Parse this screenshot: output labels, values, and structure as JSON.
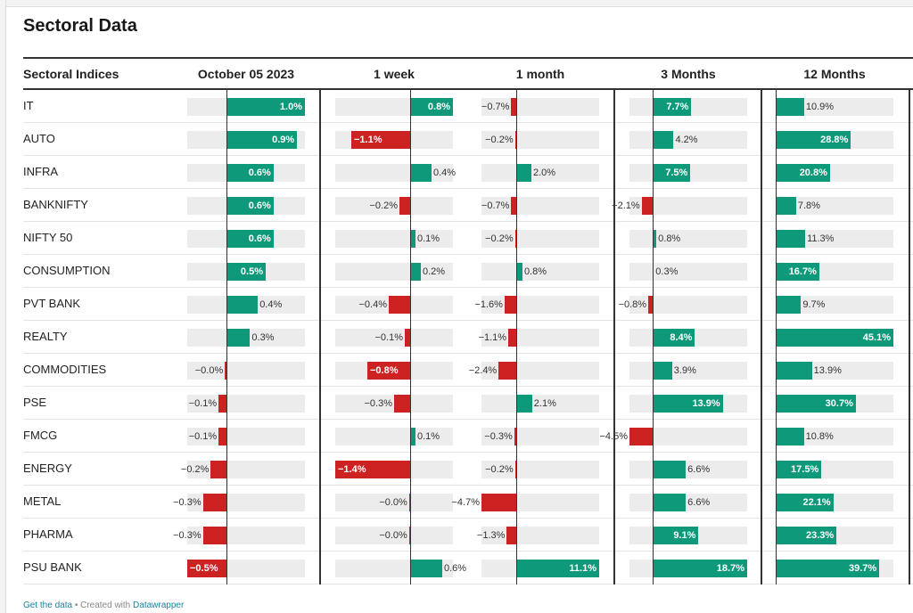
{
  "title": "Sectoral Data",
  "chart_data": {
    "type": "table",
    "row_header": "Sectoral Indices",
    "columns": [
      "October 05 2023",
      "1 week",
      "1 month",
      "3 Months",
      "12 Months"
    ],
    "rows": [
      {
        "name": "IT",
        "values": [
          1.0,
          0.8,
          -0.7,
          7.7,
          10.9
        ],
        "labels": [
          "1.0%",
          "0.8%",
          "−0.7%",
          "7.7%",
          "10.9%"
        ]
      },
      {
        "name": "AUTO",
        "values": [
          0.9,
          -1.1,
          -0.2,
          4.2,
          28.8
        ],
        "labels": [
          "0.9%",
          "−1.1%",
          "−0.2%",
          "4.2%",
          "28.8%"
        ]
      },
      {
        "name": "INFRA",
        "values": [
          0.6,
          0.4,
          2.0,
          7.5,
          20.8
        ],
        "labels": [
          "0.6%",
          "0.4%",
          "2.0%",
          "7.5%",
          "20.8%"
        ]
      },
      {
        "name": "BANKNIFTY",
        "values": [
          0.6,
          -0.2,
          -0.7,
          -2.1,
          7.8
        ],
        "labels": [
          "0.6%",
          "−0.2%",
          "−0.7%",
          "−2.1%",
          "7.8%"
        ]
      },
      {
        "name": "NIFTY 50",
        "values": [
          0.6,
          0.1,
          -0.2,
          0.8,
          11.3
        ],
        "labels": [
          "0.6%",
          "0.1%",
          "−0.2%",
          "0.8%",
          "11.3%"
        ]
      },
      {
        "name": "CONSUMPTION",
        "values": [
          0.5,
          0.2,
          0.8,
          0.3,
          16.7
        ],
        "labels": [
          "0.5%",
          "0.2%",
          "0.8%",
          "0.3%",
          "16.7%"
        ]
      },
      {
        "name": "PVT BANK",
        "values": [
          0.4,
          -0.4,
          -1.6,
          -0.8,
          9.7
        ],
        "labels": [
          "0.4%",
          "−0.4%",
          "−1.6%",
          "−0.8%",
          "9.7%"
        ]
      },
      {
        "name": "REALTY",
        "values": [
          0.3,
          -0.1,
          -1.1,
          8.4,
          45.1
        ],
        "labels": [
          "0.3%",
          "−0.1%",
          "−1.1%",
          "8.4%",
          "45.1%"
        ]
      },
      {
        "name": "COMMODITIES",
        "values": [
          -0.02,
          -0.8,
          -2.4,
          3.9,
          13.9
        ],
        "labels": [
          "−0.0%",
          "−0.8%",
          "−2.4%",
          "3.9%",
          "13.9%"
        ]
      },
      {
        "name": "PSE",
        "values": [
          -0.1,
          -0.3,
          2.1,
          13.9,
          30.7
        ],
        "labels": [
          "−0.1%",
          "−0.3%",
          "2.1%",
          "13.9%",
          "30.7%"
        ]
      },
      {
        "name": "FMCG",
        "values": [
          -0.1,
          0.1,
          -0.3,
          -4.5,
          10.8
        ],
        "labels": [
          "−0.1%",
          "0.1%",
          "−0.3%",
          "−4.5%",
          "10.8%"
        ]
      },
      {
        "name": "ENERGY",
        "values": [
          -0.2,
          -1.4,
          -0.2,
          6.6,
          17.5
        ],
        "labels": [
          "−0.2%",
          "−1.4%",
          "−0.2%",
          "6.6%",
          "17.5%"
        ]
      },
      {
        "name": "METAL",
        "values": [
          -0.3,
          -0.02,
          -4.7,
          6.6,
          22.1
        ],
        "labels": [
          "−0.3%",
          "−0.0%",
          "−4.7%",
          "6.6%",
          "22.1%"
        ]
      },
      {
        "name": "PHARMA",
        "values": [
          -0.3,
          -0.02,
          -1.3,
          9.1,
          23.3
        ],
        "labels": [
          "−0.3%",
          "−0.0%",
          "−1.3%",
          "9.1%",
          "23.3%"
        ]
      },
      {
        "name": "PSU BANK",
        "values": [
          -0.5,
          0.6,
          11.1,
          18.7,
          39.7
        ],
        "labels": [
          "−0.5%",
          "0.6%",
          "11.1%",
          "18.7%",
          "39.7%"
        ]
      }
    ],
    "column_ranges": [
      [
        -0.5,
        1.0
      ],
      [
        -1.4,
        0.8
      ],
      [
        -4.7,
        11.1
      ],
      [
        -4.5,
        18.7
      ],
      [
        0,
        45.1
      ]
    ],
    "colors": {
      "positive": "#0e9a7a",
      "negative": "#cc2222",
      "track": "#ececec"
    }
  },
  "footer": {
    "get_data": "Get the data",
    "separator": " • Created with ",
    "tool": "Datawrapper"
  }
}
